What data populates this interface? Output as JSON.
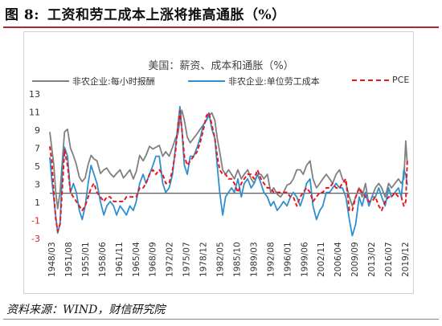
{
  "figure": {
    "number_label": "图 8:",
    "title": "工资和劳工成本上涨将推高通胀（%）",
    "source": "资料来源：WIND，财信研究院"
  },
  "chart_data": {
    "type": "line",
    "title": "美国：薪资、成本和通胀（%）",
    "ylim": [
      -3,
      13
    ],
    "yticks": [
      -3,
      -1,
      1,
      3,
      5,
      7,
      9,
      11,
      13
    ],
    "x_tick_labels": [
      "1948/03",
      "1951/08",
      "1955/01",
      "1958/06",
      "1961/11",
      "1965/04",
      "1968/09",
      "1972/02",
      "1975/07",
      "1978/12",
      "1982/05",
      "1985/10",
      "1989/03",
      "1992/08",
      "1996/01",
      "1999/06",
      "2002/11",
      "2006/04",
      "2009/09",
      "2013/02",
      "2016/07",
      "2019/12"
    ],
    "x_range": [
      1948.2,
      2021.2
    ],
    "grid": false,
    "legend_position": "top",
    "series": [
      {
        "name": "非农企业:每小时报酬",
        "color": "#808080",
        "x": [
          1948.2,
          1948.6,
          1949.0,
          1949.4,
          1949.8,
          1950.3,
          1950.8,
          1951.2,
          1951.8,
          1952.4,
          1953.0,
          1953.6,
          1954.2,
          1954.8,
          1955.4,
          1956.0,
          1956.6,
          1957.2,
          1957.8,
          1958.5,
          1959.2,
          1959.8,
          1960.5,
          1961.2,
          1961.8,
          1962.5,
          1963.2,
          1963.8,
          1964.5,
          1965.2,
          1965.8,
          1966.5,
          1967.2,
          1967.8,
          1968.5,
          1969.2,
          1969.8,
          1970.5,
          1971.2,
          1971.8,
          1972.5,
          1973.2,
          1973.8,
          1974.3,
          1974.7,
          1975.1,
          1975.6,
          1976.2,
          1976.8,
          1977.5,
          1978.2,
          1978.8,
          1979.5,
          1980.1,
          1980.6,
          1981.2,
          1981.8,
          1982.3,
          1982.8,
          1983.4,
          1984.0,
          1984.6,
          1985.2,
          1985.8,
          1986.5,
          1987.2,
          1987.8,
          1988.5,
          1989.2,
          1989.8,
          1990.5,
          1991.2,
          1991.8,
          1992.5,
          1993.2,
          1993.8,
          1994.5,
          1995.2,
          1995.8,
          1996.5,
          1997.2,
          1997.8,
          1998.5,
          1999.2,
          1999.8,
          2000.5,
          2001.2,
          2001.8,
          2002.5,
          2003.2,
          2003.8,
          2004.5,
          2005.2,
          2005.8,
          2006.5,
          2007.2,
          2007.8,
          2008.5,
          2009.2,
          2009.8,
          2010.5,
          2011.2,
          2011.8,
          2012.5,
          2013.2,
          2013.8,
          2014.5,
          2015.2,
          2015.8,
          2016.5,
          2017.2,
          2017.8,
          2018.5,
          2019.2,
          2019.8,
          2020.3,
          2020.7,
          2021.0
        ],
        "values": [
          8.8,
          7.0,
          5.2,
          2.2,
          0.3,
          2.2,
          6.0,
          8.8,
          9.1,
          7.0,
          6.2,
          5.2,
          3.8,
          3.3,
          3.7,
          5.2,
          6.2,
          5.8,
          5.6,
          4.2,
          4.6,
          4.8,
          4.2,
          3.8,
          4.2,
          4.6,
          3.7,
          4.1,
          4.6,
          3.6,
          4.4,
          6.2,
          5.6,
          6.2,
          7.2,
          6.9,
          7.1,
          7.3,
          6.1,
          6.6,
          6.1,
          7.1,
          8.1,
          8.6,
          10.2,
          11.2,
          10.1,
          8.2,
          7.6,
          8.1,
          8.6,
          9.1,
          9.6,
          10.1,
          10.6,
          10.9,
          10.1,
          8.1,
          6.6,
          4.6,
          4.1,
          4.6,
          4.1,
          3.6,
          4.6,
          3.6,
          4.1,
          4.6,
          3.6,
          3.1,
          4.1,
          4.1,
          3.6,
          4.1,
          2.1,
          2.6,
          1.9,
          1.6,
          2.1,
          2.9,
          3.1,
          3.6,
          4.6,
          4.6,
          4.1,
          5.1,
          5.6,
          3.6,
          2.6,
          3.1,
          3.6,
          4.1,
          3.6,
          3.1,
          4.1,
          4.6,
          3.6,
          3.1,
          1.6,
          0.6,
          1.6,
          2.6,
          1.6,
          3.1,
          0.6,
          1.6,
          2.6,
          3.1,
          2.6,
          1.6,
          3.1,
          2.6,
          3.1,
          3.6,
          3.1,
          3.6,
          7.8,
          5.2
        ]
      },
      {
        "name": "非农企业:单位劳工成本",
        "color": "#2f8fcf",
        "x": [
          1948.2,
          1948.6,
          1949.0,
          1949.4,
          1949.8,
          1950.3,
          1950.8,
          1951.2,
          1951.8,
          1952.4,
          1953.0,
          1953.6,
          1954.2,
          1954.8,
          1955.4,
          1956.0,
          1956.6,
          1957.2,
          1957.8,
          1958.5,
          1959.2,
          1959.8,
          1960.5,
          1961.2,
          1961.8,
          1962.5,
          1963.2,
          1963.8,
          1964.5,
          1965.2,
          1965.8,
          1966.5,
          1967.2,
          1967.8,
          1968.5,
          1969.2,
          1969.8,
          1970.5,
          1971.2,
          1971.8,
          1972.5,
          1973.2,
          1973.8,
          1974.3,
          1974.7,
          1975.1,
          1975.6,
          1976.2,
          1976.8,
          1977.5,
          1978.2,
          1978.8,
          1979.5,
          1980.1,
          1980.6,
          1981.2,
          1981.8,
          1982.3,
          1982.8,
          1983.4,
          1984.0,
          1984.6,
          1985.2,
          1985.8,
          1986.5,
          1987.2,
          1987.8,
          1988.5,
          1989.2,
          1989.8,
          1990.5,
          1991.2,
          1991.8,
          1992.5,
          1993.2,
          1993.8,
          1994.5,
          1995.2,
          1995.8,
          1996.5,
          1997.2,
          1997.8,
          1998.5,
          1999.2,
          1999.8,
          2000.5,
          2001.2,
          2001.8,
          2002.5,
          2003.2,
          2003.8,
          2004.5,
          2005.2,
          2005.8,
          2006.5,
          2007.2,
          2007.8,
          2008.5,
          2009.2,
          2009.8,
          2010.5,
          2011.2,
          2011.8,
          2012.5,
          2013.2,
          2013.8,
          2014.5,
          2015.2,
          2015.8,
          2016.5,
          2017.2,
          2017.8,
          2018.5,
          2019.2,
          2019.8,
          2020.3,
          2020.7,
          2021.0
        ],
        "values": [
          6.0,
          3.5,
          1.5,
          -0.5,
          -2.4,
          -1.3,
          5.2,
          7.1,
          6.1,
          2.1,
          3.1,
          2.1,
          0.1,
          -0.9,
          0.6,
          3.1,
          5.1,
          4.1,
          3.1,
          1.1,
          -0.4,
          0.6,
          1.1,
          0.6,
          -0.4,
          0.6,
          0.1,
          -0.4,
          0.6,
          0.1,
          1.1,
          3.1,
          4.1,
          3.1,
          4.1,
          5.1,
          6.1,
          6.1,
          3.1,
          2.1,
          2.6,
          4.1,
          7.1,
          9.6,
          11.6,
          9.1,
          5.1,
          4.1,
          6.1,
          6.1,
          7.1,
          8.1,
          9.6,
          10.1,
          10.9,
          9.1,
          8.1,
          5.1,
          2.1,
          -0.4,
          1.6,
          2.1,
          2.6,
          2.1,
          3.6,
          1.6,
          3.1,
          3.6,
          2.6,
          3.1,
          4.1,
          3.1,
          2.1,
          1.6,
          0.6,
          1.1,
          0.1,
          0.6,
          1.1,
          0.6,
          1.6,
          2.1,
          1.6,
          0.6,
          1.6,
          3.1,
          3.6,
          0.6,
          -0.9,
          0.1,
          0.6,
          2.1,
          2.1,
          2.6,
          3.1,
          2.6,
          2.6,
          1.6,
          -0.9,
          -2.7,
          -1.4,
          1.6,
          0.6,
          2.1,
          0.6,
          1.6,
          1.6,
          2.6,
          1.6,
          0.6,
          2.6,
          1.6,
          2.1,
          2.6,
          1.6,
          4.6,
          4.1,
          2.9
        ]
      },
      {
        "name": "PCE",
        "color": "#e8191e",
        "dashed": true,
        "x": [
          1948.2,
          1948.6,
          1949.0,
          1949.4,
          1949.8,
          1950.3,
          1950.8,
          1951.2,
          1951.8,
          1952.4,
          1953.0,
          1953.6,
          1954.2,
          1954.8,
          1955.4,
          1956.0,
          1956.6,
          1957.2,
          1957.8,
          1958.5,
          1959.2,
          1959.8,
          1960.5,
          1961.2,
          1961.8,
          1962.5,
          1963.2,
          1963.8,
          1964.5,
          1965.2,
          1965.8,
          1966.5,
          1967.2,
          1967.8,
          1968.5,
          1969.2,
          1969.8,
          1970.5,
          1971.2,
          1971.8,
          1972.5,
          1973.2,
          1973.8,
          1974.3,
          1974.7,
          1975.1,
          1975.6,
          1976.2,
          1976.8,
          1977.5,
          1978.2,
          1978.8,
          1979.5,
          1980.1,
          1980.6,
          1981.2,
          1981.8,
          1982.3,
          1982.8,
          1983.4,
          1984.0,
          1984.6,
          1985.2,
          1985.8,
          1986.5,
          1987.2,
          1987.8,
          1988.5,
          1989.2,
          1989.8,
          1990.5,
          1991.2,
          1991.8,
          1992.5,
          1993.2,
          1993.8,
          1994.5,
          1995.2,
          1995.8,
          1996.5,
          1997.2,
          1997.8,
          1998.5,
          1999.2,
          1999.8,
          2000.5,
          2001.2,
          2001.8,
          2002.5,
          2003.2,
          2003.8,
          2004.5,
          2005.2,
          2005.8,
          2006.5,
          2007.2,
          2007.8,
          2008.5,
          2009.2,
          2009.8,
          2010.5,
          2011.2,
          2011.8,
          2012.5,
          2013.2,
          2013.8,
          2014.5,
          2015.2,
          2015.8,
          2016.5,
          2017.2,
          2017.8,
          2018.5,
          2019.2,
          2019.8,
          2020.3,
          2020.7,
          2021.0
        ],
        "values": [
          7.2,
          5.6,
          2.1,
          -0.8,
          -2.2,
          -1.4,
          3.1,
          6.8,
          5.1,
          2.1,
          1.6,
          1.1,
          0.6,
          0.1,
          0.6,
          1.6,
          2.6,
          3.1,
          2.1,
          1.6,
          1.1,
          1.6,
          1.6,
          1.1,
          1.1,
          1.1,
          1.1,
          1.6,
          1.6,
          1.6,
          1.6,
          2.6,
          2.6,
          3.1,
          4.1,
          4.6,
          4.1,
          4.6,
          4.1,
          3.1,
          3.1,
          4.6,
          6.6,
          9.6,
          11.1,
          9.1,
          6.1,
          5.1,
          5.6,
          6.1,
          6.6,
          7.6,
          9.1,
          10.6,
          10.9,
          9.6,
          8.1,
          6.1,
          4.6,
          4.1,
          4.1,
          3.6,
          3.6,
          3.1,
          2.1,
          3.1,
          3.6,
          4.1,
          4.1,
          3.6,
          4.6,
          3.6,
          3.1,
          2.6,
          2.6,
          2.1,
          2.1,
          2.1,
          2.1,
          2.1,
          1.6,
          1.6,
          0.6,
          1.6,
          2.1,
          2.6,
          2.1,
          1.1,
          1.6,
          2.1,
          2.1,
          2.6,
          2.6,
          3.1,
          2.6,
          2.6,
          3.1,
          3.6,
          0.1,
          0.1,
          1.6,
          2.6,
          2.1,
          1.6,
          1.1,
          1.1,
          1.6,
          0.6,
          0.1,
          1.1,
          1.6,
          1.6,
          2.1,
          1.6,
          1.6,
          0.6,
          1.1,
          5.6
        ]
      }
    ]
  }
}
